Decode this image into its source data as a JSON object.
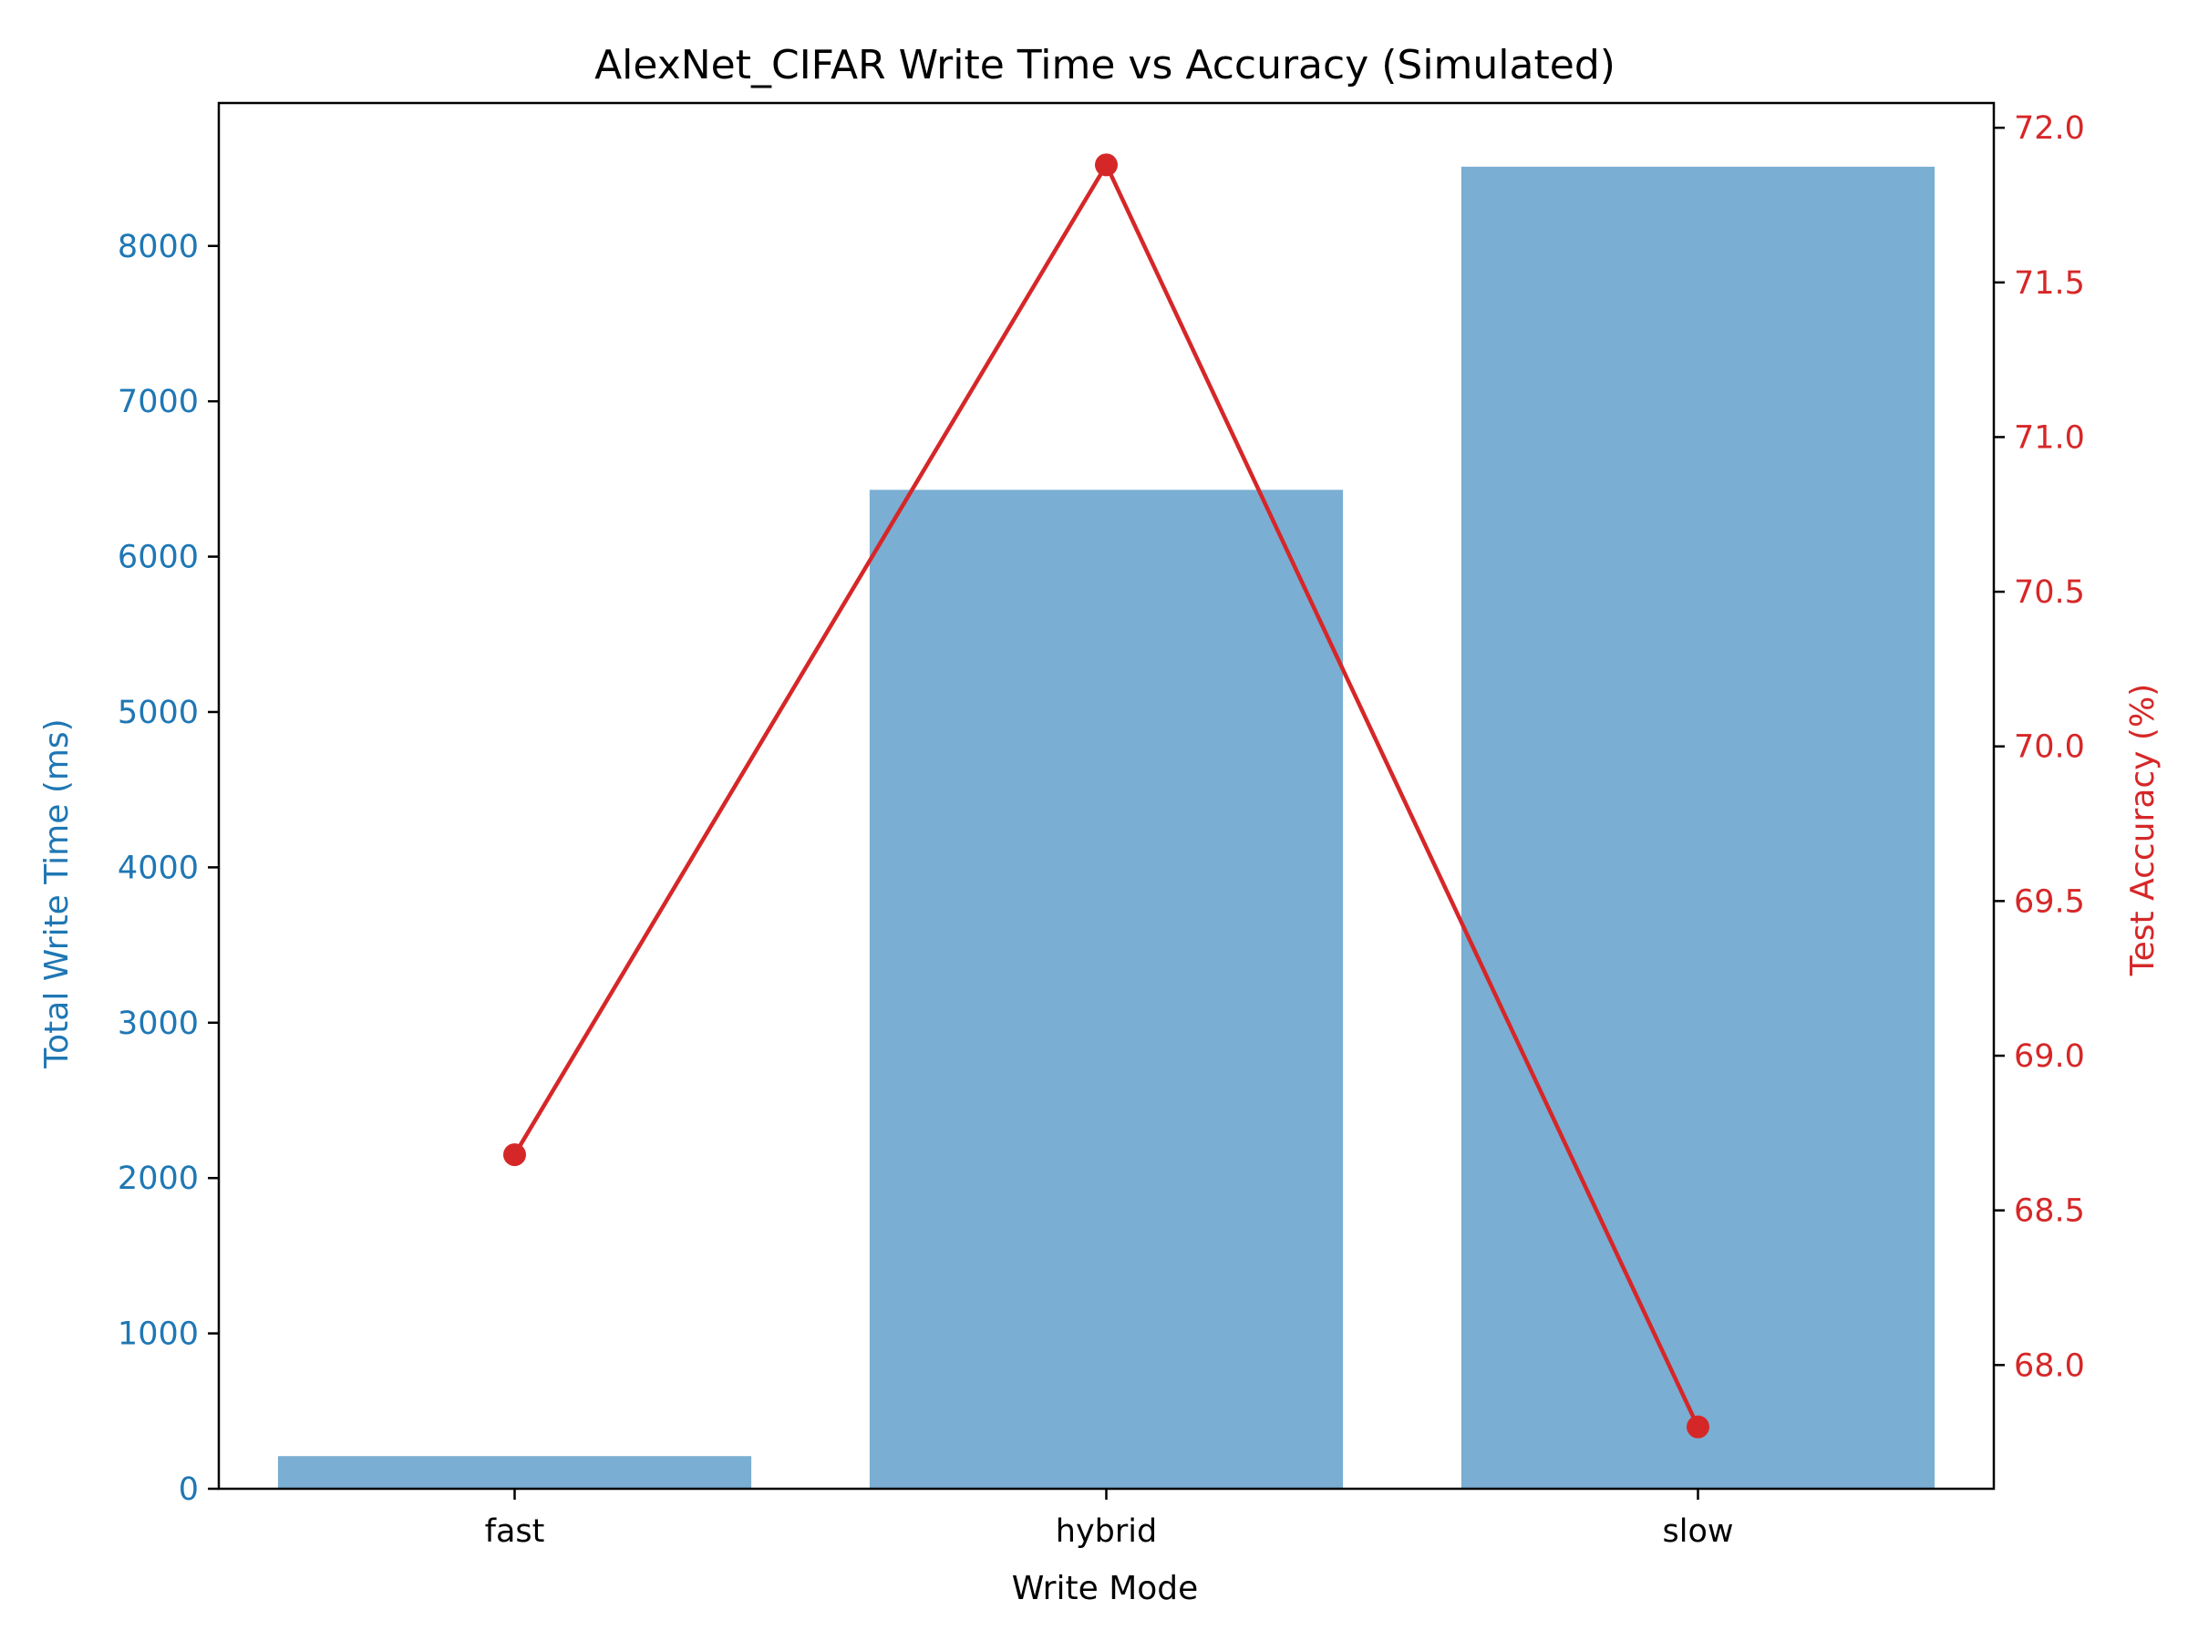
{
  "chart_data": {
    "type": "bar",
    "title": "AlexNet_CIFAR Write Time vs Accuracy (Simulated)",
    "xlabel": "Write Mode",
    "ylabel_left": "Total Write Time (ms)",
    "ylabel_right": "Test Accuracy (%)",
    "categories": [
      "fast",
      "hybrid",
      "slow"
    ],
    "series": [
      {
        "type": "bar",
        "axis": "left",
        "color": "#7aaed2",
        "values": [
          210,
          6430,
          8510
        ]
      },
      {
        "type": "line",
        "axis": "right",
        "color": "#d62728",
        "marker": "circle",
        "values": [
          68.68,
          71.88,
          67.8
        ]
      }
    ],
    "ylim_left": [
      0,
      8920
    ],
    "ylim_right": [
      67.6,
      72.08
    ],
    "yticks_left": [
      "0",
      "1000",
      "2000",
      "3000",
      "4000",
      "5000",
      "6000",
      "7000",
      "8000"
    ],
    "yticks_right": [
      "68.0",
      "68.5",
      "69.0",
      "69.5",
      "70.0",
      "70.5",
      "71.0",
      "71.5",
      "72.0"
    ],
    "left_axis_color": "#1f77b4",
    "right_axis_color": "#d62728",
    "grid": false,
    "legend": "none"
  }
}
